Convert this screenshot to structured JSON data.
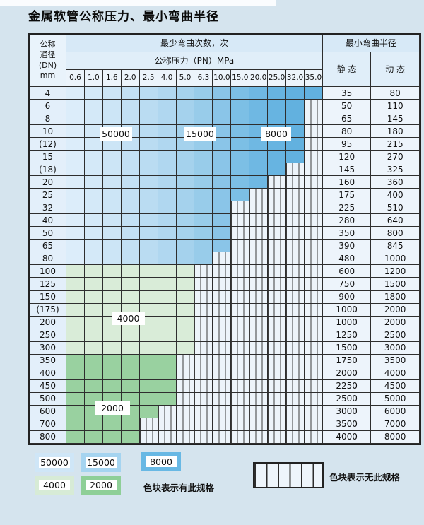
{
  "title": "金属软管公称压力、最小弯曲半径",
  "table": {
    "corner_header": [
      "公称",
      "通径",
      "(DN)",
      "mm"
    ],
    "bend_cycles_header": "最少弯曲次数，次",
    "pressure_header": "公称压力（PN）MPa",
    "radius_header": "最小弯曲半径",
    "static_header": "静 态",
    "dynamic_header": "动 态",
    "pressures": [
      "0.6",
      "1.0",
      "1.6",
      "2.0",
      "2.5",
      "4.0",
      "5.0",
      "6.3",
      "10.0",
      "15.0",
      "20.0",
      "25.0",
      "32.0",
      "35.0"
    ],
    "rows": [
      {
        "dn": "4",
        "colored": 14,
        "zone": "blue",
        "static": "35",
        "dynamic": "80"
      },
      {
        "dn": "6",
        "colored": 13,
        "zone": "blue",
        "static": "50",
        "dynamic": "110"
      },
      {
        "dn": "8",
        "colored": 13,
        "zone": "blue",
        "static": "65",
        "dynamic": "145"
      },
      {
        "dn": "10",
        "colored": 13,
        "zone": "blue",
        "static": "80",
        "dynamic": "180"
      },
      {
        "dn": "(12)",
        "colored": 13,
        "zone": "blue",
        "static": "95",
        "dynamic": "215"
      },
      {
        "dn": "15",
        "colored": 13,
        "zone": "blue",
        "static": "120",
        "dynamic": "270"
      },
      {
        "dn": "(18)",
        "colored": 12,
        "zone": "blue",
        "static": "145",
        "dynamic": "325"
      },
      {
        "dn": "20",
        "colored": 11,
        "zone": "blue",
        "static": "160",
        "dynamic": "360"
      },
      {
        "dn": "25",
        "colored": 10,
        "zone": "blue",
        "static": "175",
        "dynamic": "400"
      },
      {
        "dn": "32",
        "colored": 9,
        "zone": "blue",
        "static": "225",
        "dynamic": "510"
      },
      {
        "dn": "40",
        "colored": 9,
        "zone": "blue",
        "static": "280",
        "dynamic": "640"
      },
      {
        "dn": "50",
        "colored": 9,
        "zone": "blue",
        "static": "350",
        "dynamic": "800"
      },
      {
        "dn": "65",
        "colored": 9,
        "zone": "blue",
        "static": "390",
        "dynamic": "845"
      },
      {
        "dn": "80",
        "colored": 8,
        "zone": "blue",
        "static": "480",
        "dynamic": "1000"
      },
      {
        "dn": "100",
        "colored": 7,
        "zone": "green_light",
        "static": "600",
        "dynamic": "1200"
      },
      {
        "dn": "125",
        "colored": 7,
        "zone": "green_light",
        "static": "750",
        "dynamic": "1500"
      },
      {
        "dn": "150",
        "colored": 7,
        "zone": "green_light",
        "static": "900",
        "dynamic": "1800"
      },
      {
        "dn": "(175)",
        "colored": 7,
        "zone": "green_light",
        "static": "1000",
        "dynamic": "2000"
      },
      {
        "dn": "200",
        "colored": 7,
        "zone": "green_light",
        "static": "1000",
        "dynamic": "2000"
      },
      {
        "dn": "250",
        "colored": 7,
        "zone": "green_light",
        "static": "1250",
        "dynamic": "2500"
      },
      {
        "dn": "300",
        "colored": 7,
        "zone": "green_light",
        "static": "1500",
        "dynamic": "3000"
      },
      {
        "dn": "350",
        "colored": 6,
        "zone": "green_dark",
        "static": "1750",
        "dynamic": "3500"
      },
      {
        "dn": "400",
        "colored": 6,
        "zone": "green_dark",
        "static": "2000",
        "dynamic": "4000"
      },
      {
        "dn": "450",
        "colored": 6,
        "zone": "green_dark",
        "static": "2250",
        "dynamic": "4500"
      },
      {
        "dn": "500",
        "colored": 6,
        "zone": "green_dark",
        "static": "2500",
        "dynamic": "5000"
      },
      {
        "dn": "600",
        "colored": 5,
        "zone": "green_dark",
        "static": "3000",
        "dynamic": "6000"
      },
      {
        "dn": "700",
        "colored": 4,
        "zone": "green_dark",
        "static": "3500",
        "dynamic": "7000"
      },
      {
        "dn": "800",
        "colored": 4,
        "zone": "green_dark",
        "static": "4000",
        "dynamic": "8000"
      }
    ]
  },
  "overlay_labels": [
    "50000",
    "15000",
    "8000",
    "4000",
    "2000"
  ],
  "legend": {
    "has_spec_boxes": [
      "50000",
      "15000",
      "8000",
      "4000",
      "2000"
    ],
    "has_spec_text": "色块表示有此规格",
    "no_spec_text": "色块表示无此规格"
  },
  "colors": {
    "page_background": "#d5e4ee",
    "blue_palette": [
      "#dcedfa",
      "#d4e9f8",
      "#cce5f6",
      "#c3e0f4",
      "#badcf2",
      "#b0d7f0",
      "#a5d2ed",
      "#98ccea",
      "#8ac5e8",
      "#7cbfe5",
      "#6fb8e3",
      "#67b4e1",
      "#62b1df",
      "#62b1df"
    ],
    "green_light": "#d9ecd8",
    "green_dark": "#99d1a0",
    "legend_frames": {
      "50000": "#cfe6f7",
      "15000": "#a5d4f0",
      "8000": "#68b8e4",
      "4000": "#d7ebd6",
      "2000": "#8ecf97"
    }
  },
  "chart_data": {
    "type": "table",
    "title": "金属软管公称压力、最小弯曲半径",
    "column_group_headers": [
      "最少弯曲次数，次",
      "公称压力（PN）MPa",
      "最小弯曲半径"
    ],
    "pressure_columns_MPa": [
      0.6,
      1.0,
      1.6,
      2.0,
      2.5,
      4.0,
      5.0,
      6.3,
      10.0,
      15.0,
      20.0,
      25.0,
      32.0,
      35.0
    ],
    "radius_columns": [
      "静 态",
      "动 态"
    ],
    "bend_cycle_zones": [
      {
        "cycles": 50000,
        "color": "lightest blue"
      },
      {
        "cycles": 15000,
        "color": "medium blue"
      },
      {
        "cycles": 8000,
        "color": "dark blue"
      },
      {
        "cycles": 4000,
        "color": "light green"
      },
      {
        "cycles": 2000,
        "color": "dark green"
      }
    ],
    "rows": [
      {
        "dn": "4",
        "available_up_to_pn": 35.0,
        "static_radius": 35,
        "dynamic_radius": 80
      },
      {
        "dn": "6",
        "available_up_to_pn": 32.0,
        "static_radius": 50,
        "dynamic_radius": 110
      },
      {
        "dn": "8",
        "available_up_to_pn": 32.0,
        "static_radius": 65,
        "dynamic_radius": 145
      },
      {
        "dn": "10",
        "available_up_to_pn": 32.0,
        "static_radius": 80,
        "dynamic_radius": 180
      },
      {
        "dn": "(12)",
        "available_up_to_pn": 32.0,
        "static_radius": 95,
        "dynamic_radius": 215
      },
      {
        "dn": "15",
        "available_up_to_pn": 32.0,
        "static_radius": 120,
        "dynamic_radius": 270
      },
      {
        "dn": "(18)",
        "available_up_to_pn": 25.0,
        "static_radius": 145,
        "dynamic_radius": 325
      },
      {
        "dn": "20",
        "available_up_to_pn": 20.0,
        "static_radius": 160,
        "dynamic_radius": 360
      },
      {
        "dn": "25",
        "available_up_to_pn": 15.0,
        "static_radius": 175,
        "dynamic_radius": 400
      },
      {
        "dn": "32",
        "available_up_to_pn": 10.0,
        "static_radius": 225,
        "dynamic_radius": 510
      },
      {
        "dn": "40",
        "available_up_to_pn": 10.0,
        "static_radius": 280,
        "dynamic_radius": 640
      },
      {
        "dn": "50",
        "available_up_to_pn": 10.0,
        "static_radius": 350,
        "dynamic_radius": 800
      },
      {
        "dn": "65",
        "available_up_to_pn": 10.0,
        "static_radius": 390,
        "dynamic_radius": 845
      },
      {
        "dn": "80",
        "available_up_to_pn": 6.3,
        "static_radius": 480,
        "dynamic_radius": 1000
      },
      {
        "dn": "100",
        "available_up_to_pn": 5.0,
        "static_radius": 600,
        "dynamic_radius": 1200
      },
      {
        "dn": "125",
        "available_up_to_pn": 5.0,
        "static_radius": 750,
        "dynamic_radius": 1500
      },
      {
        "dn": "150",
        "available_up_to_pn": 5.0,
        "static_radius": 900,
        "dynamic_radius": 1800
      },
      {
        "dn": "(175)",
        "available_up_to_pn": 5.0,
        "static_radius": 1000,
        "dynamic_radius": 2000
      },
      {
        "dn": "200",
        "available_up_to_pn": 5.0,
        "static_radius": 1000,
        "dynamic_radius": 2000
      },
      {
        "dn": "250",
        "available_up_to_pn": 5.0,
        "static_radius": 1250,
        "dynamic_radius": 2500
      },
      {
        "dn": "300",
        "available_up_to_pn": 5.0,
        "static_radius": 1500,
        "dynamic_radius": 3000
      },
      {
        "dn": "350",
        "available_up_to_pn": 4.0,
        "static_radius": 1750,
        "dynamic_radius": 3500
      },
      {
        "dn": "400",
        "available_up_to_pn": 4.0,
        "static_radius": 2000,
        "dynamic_radius": 4000
      },
      {
        "dn": "450",
        "available_up_to_pn": 4.0,
        "static_radius": 2250,
        "dynamic_radius": 4500
      },
      {
        "dn": "500",
        "available_up_to_pn": 4.0,
        "static_radius": 2500,
        "dynamic_radius": 5000
      },
      {
        "dn": "600",
        "available_up_to_pn": 2.5,
        "static_radius": 3000,
        "dynamic_radius": 6000
      },
      {
        "dn": "700",
        "available_up_to_pn": 2.0,
        "static_radius": 3500,
        "dynamic_radius": 7000
      },
      {
        "dn": "800",
        "available_up_to_pn": 2.0,
        "static_radius": 4000,
        "dynamic_radius": 8000
      }
    ],
    "legend": [
      "色块表示有此规格",
      "色块表示无此规格"
    ]
  }
}
